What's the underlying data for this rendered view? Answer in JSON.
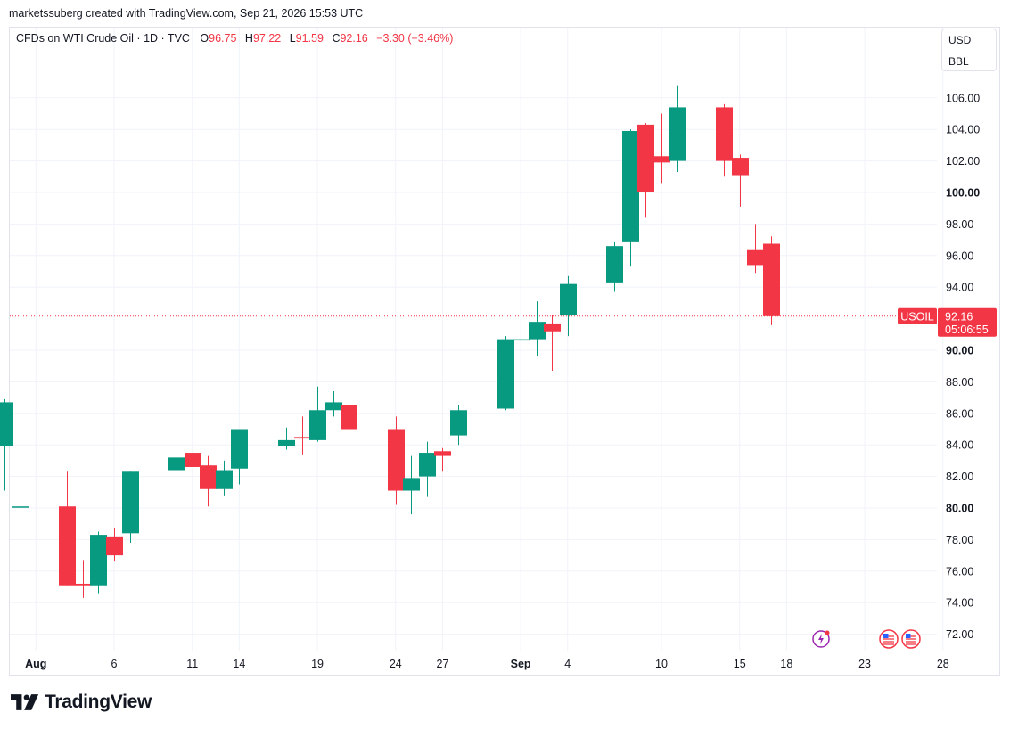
{
  "header": {
    "credit": "marketssuberg created with TradingView.com, Sep 21, 2026 15:53 UTC"
  },
  "legend": {
    "symbol": "CFDs on WTI Crude Oil · 1D · TVC",
    "o_label": "O",
    "o_value": "96.75",
    "h_label": "H",
    "h_value": "97.22",
    "l_label": "L",
    "l_value": "91.59",
    "c_label": "C",
    "c_value": "92.16",
    "change": "−3.30 (−3.46%)"
  },
  "units": {
    "currency": "USD",
    "unit": "BBL"
  },
  "price_tag": {
    "symbol": "USOIL",
    "price": "92.16",
    "countdown": "05:06:55"
  },
  "footer": {
    "brand": "TradingView"
  },
  "colors": {
    "up": "#089981",
    "down": "#f23645",
    "grid": "#f0f3fa",
    "text": "#131722"
  },
  "icons": {
    "event_flash": "lightning-icon",
    "flag": "us-flag-icon"
  },
  "chart_data": {
    "type": "candlestick",
    "title": "CFDs on WTI Crude Oil · 1D · TVC",
    "ylim": [
      71.0,
      108.0
    ],
    "y_ticks": [
      {
        "value": 72,
        "label": "72.00",
        "bold": false
      },
      {
        "value": 74,
        "label": "74.00",
        "bold": false
      },
      {
        "value": 76,
        "label": "76.00",
        "bold": false
      },
      {
        "value": 78,
        "label": "78.00",
        "bold": false
      },
      {
        "value": 80,
        "label": "80.00",
        "bold": true
      },
      {
        "value": 82,
        "label": "82.00",
        "bold": false
      },
      {
        "value": 84,
        "label": "84.00",
        "bold": false
      },
      {
        "value": 86,
        "label": "86.00",
        "bold": false
      },
      {
        "value": 88,
        "label": "88.00",
        "bold": false
      },
      {
        "value": 90,
        "label": "90.00",
        "bold": true
      },
      {
        "value": 94,
        "label": "94.00",
        "bold": false
      },
      {
        "value": 96,
        "label": "96.00",
        "bold": false
      },
      {
        "value": 98,
        "label": "98.00",
        "bold": false
      },
      {
        "value": 100,
        "label": "100.00",
        "bold": true
      },
      {
        "value": 102,
        "label": "102.00",
        "bold": false
      },
      {
        "value": 104,
        "label": "104.00",
        "bold": false
      },
      {
        "value": 106,
        "label": "106.00",
        "bold": false
      }
    ],
    "x_ticks": [
      {
        "date": "2026-08-01",
        "label": "Aug",
        "bold": true
      },
      {
        "date": "2026-08-06",
        "label": "6",
        "bold": false
      },
      {
        "date": "2026-08-11",
        "label": "11",
        "bold": false
      },
      {
        "date": "2026-08-14",
        "label": "14",
        "bold": false
      },
      {
        "date": "2026-08-19",
        "label": "19",
        "bold": false
      },
      {
        "date": "2026-08-24",
        "label": "24",
        "bold": false
      },
      {
        "date": "2026-08-27",
        "label": "27",
        "bold": false
      },
      {
        "date": "2026-09-01",
        "label": "Sep",
        "bold": true
      },
      {
        "date": "2026-09-04",
        "label": "4",
        "bold": false
      },
      {
        "date": "2026-09-10",
        "label": "10",
        "bold": false
      },
      {
        "date": "2026-09-15",
        "label": "15",
        "bold": false
      },
      {
        "date": "2026-09-18",
        "label": "18",
        "bold": false
      },
      {
        "date": "2026-09-23",
        "label": "23",
        "bold": false
      },
      {
        "date": "2026-09-28",
        "label": "28",
        "bold": false
      }
    ],
    "last_price": 92.16,
    "candles": [
      {
        "date": "2026-07-30",
        "o": 83.9,
        "h": 86.9,
        "l": 81.1,
        "c": 86.7
      },
      {
        "date": "2026-07-31",
        "o": 80.1,
        "h": 81.3,
        "l": 78.4,
        "c": 80.1
      },
      {
        "date": "2026-08-03",
        "o": 80.1,
        "h": 82.3,
        "l": 75.1,
        "c": 75.1
      },
      {
        "date": "2026-08-04",
        "o": 75.2,
        "h": 76.7,
        "l": 74.3,
        "c": 75.1
      },
      {
        "date": "2026-08-05",
        "o": 75.1,
        "h": 78.5,
        "l": 74.6,
        "c": 78.3
      },
      {
        "date": "2026-08-06",
        "o": 78.2,
        "h": 78.7,
        "l": 76.6,
        "c": 77.0
      },
      {
        "date": "2026-08-07",
        "o": 78.4,
        "h": 82.3,
        "l": 77.8,
        "c": 82.3
      },
      {
        "date": "2026-08-10",
        "o": 82.4,
        "h": 84.6,
        "l": 81.3,
        "c": 83.2
      },
      {
        "date": "2026-08-11",
        "o": 83.5,
        "h": 84.3,
        "l": 82.5,
        "c": 82.6
      },
      {
        "date": "2026-08-12",
        "o": 82.7,
        "h": 83.3,
        "l": 80.1,
        "c": 81.2
      },
      {
        "date": "2026-08-13",
        "o": 81.2,
        "h": 83.0,
        "l": 80.8,
        "c": 82.4
      },
      {
        "date": "2026-08-14",
        "o": 82.5,
        "h": 85.0,
        "l": 81.5,
        "c": 85.0
      },
      {
        "date": "2026-08-17",
        "o": 83.9,
        "h": 85.1,
        "l": 83.7,
        "c": 84.3
      },
      {
        "date": "2026-08-18",
        "o": 84.5,
        "h": 85.8,
        "l": 83.4,
        "c": 84.4
      },
      {
        "date": "2026-08-19",
        "o": 84.3,
        "h": 87.7,
        "l": 84.2,
        "c": 86.2
      },
      {
        "date": "2026-08-20",
        "o": 86.2,
        "h": 87.4,
        "l": 85.8,
        "c": 86.7
      },
      {
        "date": "2026-08-21",
        "o": 86.5,
        "h": 86.6,
        "l": 84.3,
        "c": 85.0
      },
      {
        "date": "2026-08-24",
        "o": 85.0,
        "h": 85.8,
        "l": 80.2,
        "c": 81.1
      },
      {
        "date": "2026-08-25",
        "o": 81.1,
        "h": 83.3,
        "l": 79.6,
        "c": 81.9
      },
      {
        "date": "2026-08-26",
        "o": 82.0,
        "h": 84.2,
        "l": 80.7,
        "c": 83.5
      },
      {
        "date": "2026-08-27",
        "o": 83.6,
        "h": 83.8,
        "l": 82.3,
        "c": 83.3
      },
      {
        "date": "2026-08-28",
        "o": 84.6,
        "h": 86.5,
        "l": 84.0,
        "c": 86.2
      },
      {
        "date": "2026-08-31",
        "o": 86.3,
        "h": 90.9,
        "l": 86.2,
        "c": 90.7
      },
      {
        "date": "2026-09-01",
        "o": 90.7,
        "h": 92.3,
        "l": 89.0,
        "c": 90.7
      },
      {
        "date": "2026-09-02",
        "o": 90.7,
        "h": 93.1,
        "l": 89.6,
        "c": 91.8
      },
      {
        "date": "2026-09-03",
        "o": 91.7,
        "h": 92.2,
        "l": 88.7,
        "c": 91.2
      },
      {
        "date": "2026-09-04",
        "o": 92.2,
        "h": 94.7,
        "l": 90.9,
        "c": 94.2
      },
      {
        "date": "2026-09-07",
        "o": 94.3,
        "h": 96.9,
        "l": 93.7,
        "c": 96.6
      },
      {
        "date": "2026-09-08",
        "o": 96.9,
        "h": 104.0,
        "l": 95.3,
        "c": 103.9
      },
      {
        "date": "2026-09-09",
        "o": 104.3,
        "h": 104.4,
        "l": 98.4,
        "c": 100.0
      },
      {
        "date": "2026-09-10",
        "o": 102.3,
        "h": 105.0,
        "l": 100.6,
        "c": 101.9
      },
      {
        "date": "2026-09-11",
        "o": 102.0,
        "h": 106.8,
        "l": 101.3,
        "c": 105.4
      },
      {
        "date": "2026-09-14",
        "o": 105.4,
        "h": 105.6,
        "l": 101.0,
        "c": 102.0
      },
      {
        "date": "2026-09-15",
        "o": 102.2,
        "h": 102.4,
        "l": 99.1,
        "c": 101.1
      },
      {
        "date": "2026-09-16",
        "o": 96.4,
        "h": 98.0,
        "l": 94.9,
        "c": 95.4
      },
      {
        "date": "2026-09-17",
        "o": 96.75,
        "h": 97.22,
        "l": 91.59,
        "c": 92.16
      }
    ]
  }
}
